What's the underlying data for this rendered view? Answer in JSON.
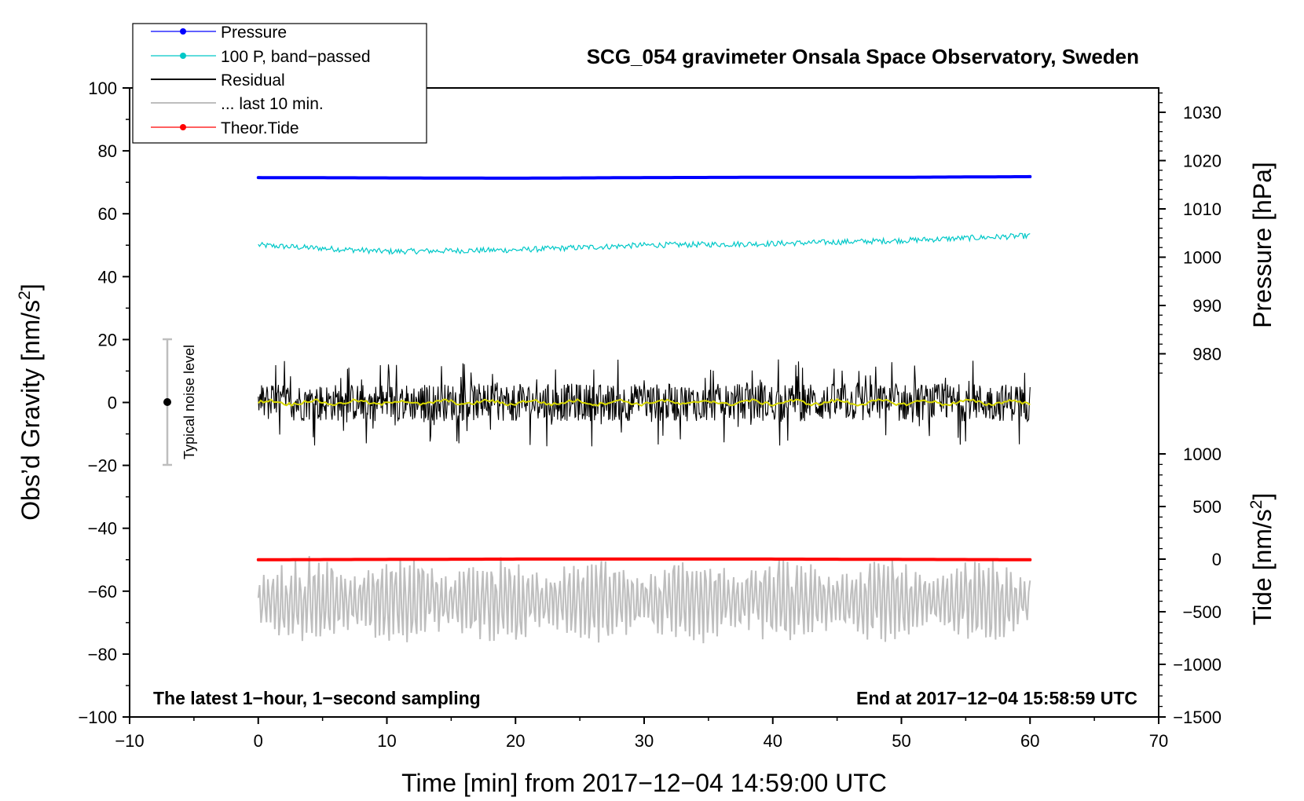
{
  "chart_data": {
    "type": "line",
    "title": "SCG_054 gravimeter Onsala Space Observatory, Sweden",
    "xlabel": "Time [min] from 2017−12−04 14:59:00 UTC",
    "xlim": [
      -10,
      70
    ],
    "x_ticks": [
      "−10",
      "0",
      "10",
      "20",
      "30",
      "40",
      "50",
      "60",
      "70"
    ],
    "y_left": {
      "label": "Obs’d Gravity [nm/s",
      "label_sup": "2",
      "label_end": "]",
      "ylim": [
        -100,
        100
      ],
      "ticks": [
        "100",
        "80",
        "60",
        "40",
        "20",
        "0",
        "−20",
        "−40",
        "−60",
        "−80",
        "−100"
      ]
    },
    "y_right_pressure": {
      "label": "Pressure [hPa]",
      "range": [
        970,
        1035
      ],
      "ticks": [
        "1030",
        "1020",
        "1010",
        "1000",
        "990",
        "980"
      ]
    },
    "y_right_tide": {
      "label": "Tide [nm/s",
      "label_sup": "2",
      "label_end": "]",
      "range": [
        -1500,
        1000
      ],
      "ticks": [
        "1000",
        "500",
        "0",
        "−500",
        "−1000",
        "−1500"
      ]
    },
    "legend": [
      {
        "label": "Pressure",
        "color": "#0000ff"
      },
      {
        "label": "100 P, band−passed",
        "color": "#00c8c8"
      },
      {
        "label": "Residual",
        "color": "#000000"
      },
      {
        "label": "... last 10 min.",
        "color": "#bebebe"
      },
      {
        "label": "Theor.Tide",
        "color": "#ff0000"
      }
    ],
    "legend_position": "top-left",
    "series": [
      {
        "name": "Pressure",
        "color": "#0000ff",
        "axis": "left",
        "x": [
          0,
          10,
          20,
          30,
          40,
          50,
          60
        ],
        "values": [
          71.5,
          71.4,
          71.3,
          71.5,
          71.6,
          71.6,
          71.8
        ]
      },
      {
        "name": "100 P, band−passed",
        "color": "#00c8c8",
        "axis": "left",
        "x": [
          0,
          10,
          20,
          30,
          40,
          50,
          60
        ],
        "values": [
          50,
          48,
          48.5,
          50,
          50.5,
          51.5,
          53
        ]
      },
      {
        "name": "Residual",
        "color": "#000000",
        "axis": "left",
        "x_range": [
          0,
          60
        ],
        "mean": 0,
        "amplitude_approx": 14
      },
      {
        "name": "Residual smoothed",
        "color": "#d8d800",
        "axis": "left",
        "x_range": [
          0,
          60
        ],
        "mean": 0
      },
      {
        "name": "... last 10 min.",
        "color": "#bebebe",
        "axis": "left",
        "x_range": [
          0,
          60
        ],
        "mean": -63,
        "amplitude_approx": 11
      },
      {
        "name": "Theor.Tide",
        "color": "#ff0000",
        "axis": "left",
        "x": [
          0,
          10,
          20,
          30,
          40,
          50,
          60
        ],
        "values": [
          -50,
          -49.9,
          -49.8,
          -49.8,
          -49.8,
          -49.9,
          -50
        ]
      }
    ],
    "noise_bar": {
      "label": "Typical noise level",
      "x": -7,
      "y": 0,
      "range": [
        -20,
        20
      ]
    },
    "footer_left": "The latest 1−hour, 1−second sampling",
    "footer_right": "End at 2017−12−04 15:58:59 UTC"
  }
}
